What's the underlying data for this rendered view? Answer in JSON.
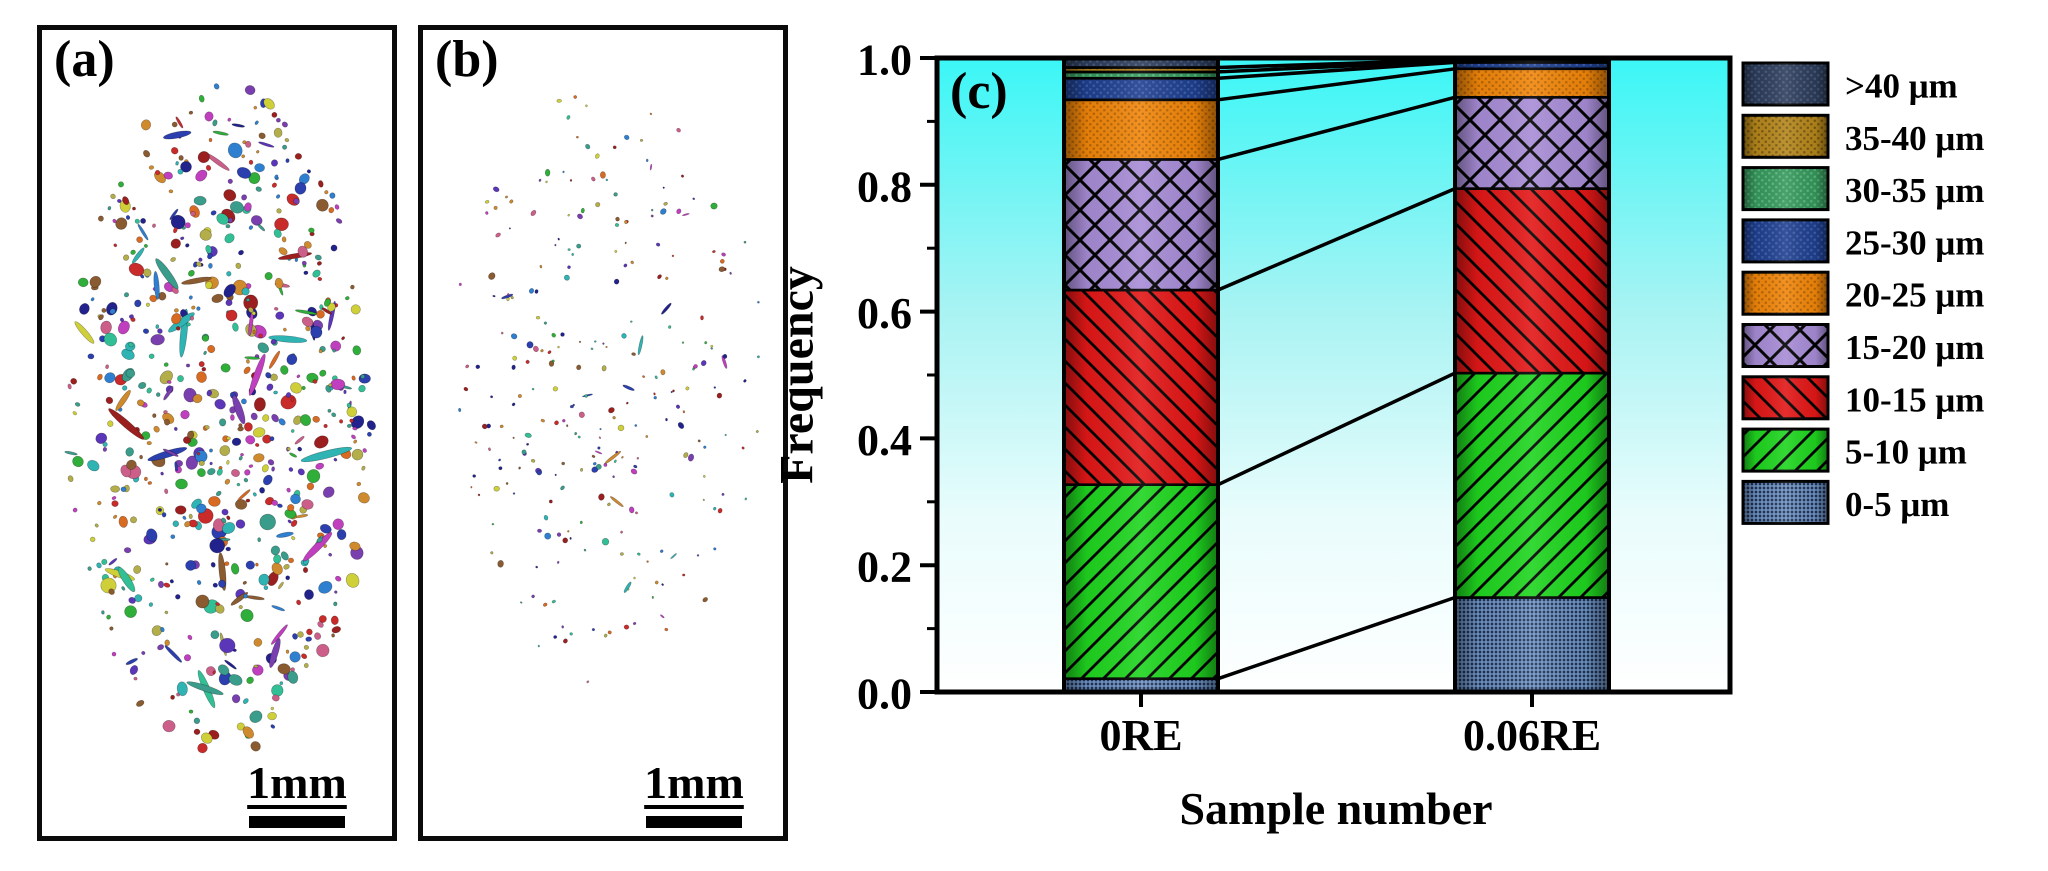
{
  "figure": {
    "panels": {
      "a": {
        "label": "(a)",
        "scale_bar_label": "1mm",
        "particle_count": 700,
        "palette": [
          "#bf3fbf",
          "#2fb3b3",
          "#2fae3a",
          "#c92a2a",
          "#2b3fae",
          "#cf8a2e",
          "#b3ad4a",
          "#7a3fae",
          "#cc5f8a",
          "#2f7fd0",
          "#8a5a30",
          "#22228c",
          "#cfcf3a",
          "#33bf96",
          "#d96a22",
          "#5b36b8",
          "#9c1f1f",
          "#3a9c8a"
        ]
      },
      "b": {
        "label": "(b)",
        "scale_bar_label": "1mm",
        "particle_count": 280,
        "palette": [
          "#bf3fbf",
          "#2fb3b3",
          "#2fae3a",
          "#c92a2a",
          "#2b3fae",
          "#cf8a2e",
          "#b3ad4a",
          "#7a3fae",
          "#cc5f8a",
          "#2f7fd0",
          "#8a5a30",
          "#22228c",
          "#cfcf3a",
          "#33bf96",
          "#d96a22",
          "#5b36b8",
          "#9c1f1f",
          "#3a9c8a"
        ]
      },
      "c": {
        "label": "(c)"
      }
    }
  },
  "chart_data": {
    "type": "bar",
    "subtype": "stacked-column",
    "title": "",
    "xlabel": "Sample number",
    "ylabel": "Frequency",
    "ylim": [
      0.0,
      1.0
    ],
    "y_tick_labels": [
      "0.0",
      "0.2",
      "0.4",
      "0.6",
      "0.8",
      "1.0"
    ],
    "y_tick_values": [
      0.0,
      0.2,
      0.4,
      0.6,
      0.8,
      1.0
    ],
    "minor_tick_values": [
      0.1,
      0.3,
      0.5,
      0.7,
      0.9
    ],
    "categories": [
      "0RE",
      "0.06RE"
    ],
    "series": [
      {
        "name": "0-5 μm",
        "values": [
          0.021,
          0.149
        ],
        "color": "#1E3257",
        "pattern": "grid",
        "pattern_color": "#7FA4D4"
      },
      {
        "name": "5-10 μm",
        "values": [
          0.306,
          0.354
        ],
        "color": "#1FD51F",
        "pattern": "diag-up",
        "pattern_color": "#000000"
      },
      {
        "name": "10-15 μm",
        "values": [
          0.307,
          0.291
        ],
        "color": "#E21717",
        "pattern": "diag-down",
        "pattern_color": "#000000"
      },
      {
        "name": "15-20 μm",
        "values": [
          0.206,
          0.144
        ],
        "color": "#A78CD6",
        "pattern": "crosshatch",
        "pattern_color": "#000000"
      },
      {
        "name": "20-25 μm",
        "values": [
          0.094,
          0.045
        ],
        "color": "#F1860A",
        "pattern": "dots",
        "pattern_color": "#B96605"
      },
      {
        "name": "25-30 μm",
        "values": [
          0.034,
          0.01
        ],
        "color": "#1F3F8F",
        "pattern": "dots",
        "pattern_color": "#3D5FA8"
      },
      {
        "name": "30-35 μm",
        "values": [
          0.01,
          0.002
        ],
        "color": "#36975C",
        "pattern": "dots",
        "pattern_color": "#59B87E"
      },
      {
        "name": "35-40 μm",
        "values": [
          0.007,
          0.002
        ],
        "color": "#B5861B",
        "pattern": "dots",
        "pattern_color": "#7A5A0F"
      },
      {
        "name": ">40 μm",
        "values": [
          0.015,
          0.003
        ],
        "color": "#2D3D5B",
        "pattern": "dots",
        "pattern_color": "#49597A"
      }
    ],
    "legend": {
      "position": "right",
      "labels_top_to_bottom": [
        ">40 μm",
        "35-40 μm",
        "30-35 μm",
        "25-30 μm",
        "20-25 μm",
        "15-20 μm",
        "10-15 μm",
        "5-10 μm",
        "0-5 μm"
      ]
    },
    "grid": false,
    "connector_lines": true,
    "plot_background_gradient": [
      [
        "0%",
        "#3BF6F6"
      ],
      [
        "40%",
        "#A9F3F3"
      ],
      [
        "72%",
        "#E9FCFC"
      ],
      [
        "100%",
        "#FFFFFF"
      ]
    ]
  }
}
